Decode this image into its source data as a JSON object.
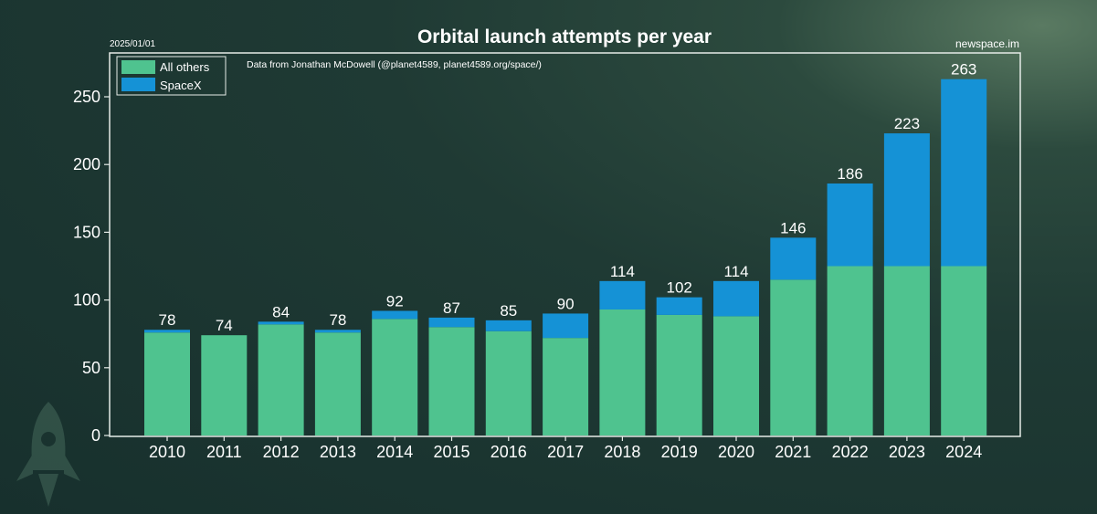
{
  "header": {
    "date": "2025/01/01",
    "site": "newspace.im"
  },
  "colors": {
    "others": "#4fc38f",
    "spacex": "#1592d6"
  },
  "chart_data": {
    "type": "bar",
    "stacked": true,
    "title": "Orbital launch attempts per year",
    "subtitle": "Data from Jonathan McDowell (@planet4589, planet4589.org/space/)",
    "xlabel": "",
    "ylabel": "",
    "ylim": [
      0,
      270
    ],
    "yticks": [
      0,
      50,
      100,
      150,
      200,
      250
    ],
    "grid": false,
    "legend_position": "top-left",
    "categories": [
      "2010",
      "2011",
      "2012",
      "2013",
      "2014",
      "2015",
      "2016",
      "2017",
      "2018",
      "2019",
      "2020",
      "2021",
      "2022",
      "2023",
      "2024"
    ],
    "series": [
      {
        "name": "All others",
        "values": [
          76,
          74,
          82,
          76,
          86,
          80,
          77,
          72,
          93,
          89,
          88,
          115,
          125,
          125,
          125
        ]
      },
      {
        "name": "SpaceX",
        "values": [
          2,
          0,
          2,
          2,
          6,
          7,
          8,
          18,
          21,
          13,
          26,
          31,
          61,
          98,
          138
        ]
      }
    ],
    "totals": [
      78,
      74,
      84,
      78,
      92,
      87,
      85,
      90,
      114,
      102,
      114,
      146,
      186,
      223,
      263
    ]
  }
}
